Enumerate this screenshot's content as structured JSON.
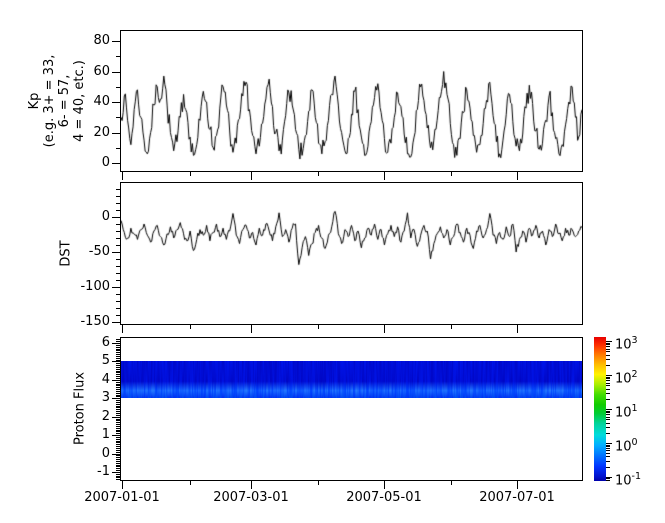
{
  "figure": {
    "background": "#ffffff",
    "frame_color": "#000000",
    "line_color": "#000000"
  },
  "panels": {
    "kp": {
      "ylabel": "Kp\n(e.g. 3+ = 33,\n6- = 57,\n4 = 40, etc.)",
      "yticks_major": [
        0,
        20,
        40,
        60,
        80
      ],
      "yticks_minor": [
        10,
        30,
        50,
        70
      ]
    },
    "dst": {
      "ylabel": "DST",
      "yticks_major": [
        0,
        -50,
        -100,
        -150
      ],
      "yticks_minor": [
        40,
        30,
        20,
        10,
        -10,
        -20,
        -30,
        -40,
        -60,
        -70,
        -80,
        -90,
        -110,
        -120,
        -130,
        -140
      ]
    },
    "flux": {
      "ylabel": "Proton Flux",
      "yticks_major": [
        6,
        5,
        4,
        3,
        2,
        1,
        0,
        -1
      ],
      "yticks_minor_step": 0.1
    }
  },
  "x_axis": {
    "tick_labels": [
      "2007-01-01",
      "2007-03-01",
      "2007-05-01",
      "2007-07-01"
    ],
    "tick_days": [
      0,
      59,
      120,
      181
    ],
    "minor_days": [
      31,
      90,
      151
    ],
    "range_days": [
      -1,
      211.5
    ],
    "unit": "days since 2007-01-01"
  },
  "chart_data": [
    {
      "type": "line",
      "name": "Kp",
      "ylabel": "Kp (e.g. 3+ = 33, 6- = 57, 4 = 40, etc.)",
      "ylim": [
        -5,
        87
      ],
      "yticks": [
        0,
        20,
        40,
        60,
        80
      ],
      "x_range": [
        "2007-01-01",
        "2007-07-31"
      ],
      "line_color": "#000000",
      "noise_seed": 7,
      "noise_amp": 7,
      "clamp": [
        0,
        62
      ],
      "values": [
        30,
        44,
        28,
        12,
        35,
        48,
        30,
        15,
        6,
        20,
        38,
        50,
        42,
        57,
        38,
        20,
        8,
        14,
        30,
        45,
        33,
        17,
        5,
        12,
        28,
        47,
        40,
        22,
        10,
        18,
        36,
        50,
        38,
        21,
        7,
        13,
        29,
        44,
        53,
        35,
        18,
        6,
        11,
        26,
        42,
        55,
        37,
        20,
        8,
        15,
        31,
        46,
        38,
        22,
        9,
        5,
        18,
        34,
        48,
        30,
        13,
        6,
        14,
        28,
        45,
        57,
        38,
        20,
        8,
        16,
        32,
        47,
        35,
        17,
        5,
        11,
        27,
        43,
        52,
        33,
        16,
        7,
        13,
        30,
        46,
        37,
        19,
        6,
        4,
        17,
        35,
        50,
        41,
        23,
        10,
        15,
        28,
        43,
        60,
        45,
        26,
        12,
        5,
        16,
        33,
        48,
        36,
        18,
        7,
        12,
        26,
        41,
        53,
        31,
        14,
        6,
        15,
        32,
        45,
        27,
        11,
        8,
        19,
        36,
        51,
        39,
        21,
        9,
        13,
        28,
        44,
        33,
        16,
        6,
        12,
        25,
        40,
        50,
        30,
        17,
        35
      ]
    },
    {
      "type": "line",
      "name": "DST",
      "ylabel": "DST",
      "ylim": [
        -153,
        49
      ],
      "yticks": [
        0,
        -50,
        -100,
        -150
      ],
      "x_range": [
        "2007-01-01",
        "2007-07-31"
      ],
      "line_color": "#000000",
      "noise_seed": 13,
      "noise_amp": 5,
      "clamp": [
        -75,
        15
      ],
      "values": [
        -5,
        -22,
        -30,
        -16,
        -24,
        -32,
        -18,
        -10,
        -26,
        -36,
        -20,
        -12,
        -28,
        -40,
        -24,
        -14,
        -30,
        -18,
        -8,
        -24,
        -34,
        -20,
        -48,
        -32,
        -18,
        -26,
        -12,
        -34,
        -22,
        -10,
        -28,
        -16,
        -32,
        -20,
        5,
        -26,
        -38,
        -18,
        -12,
        -30,
        -22,
        -40,
        -16,
        -26,
        -10,
        -20,
        -34,
        -14,
        6,
        -28,
        -18,
        -36,
        -16,
        -10,
        -68,
        -44,
        -28,
        -55,
        -38,
        -22,
        -12,
        -30,
        -45,
        -26,
        -14,
        8,
        -24,
        -38,
        -18,
        -28,
        -12,
        -34,
        -20,
        -44,
        -30,
        -16,
        -26,
        -10,
        -32,
        -18,
        -40,
        -24,
        -12,
        -28,
        -14,
        -36,
        -20,
        6,
        -30,
        -18,
        -42,
        -26,
        -12,
        -20,
        -60,
        -38,
        -24,
        -14,
        -30,
        -18,
        -40,
        -28,
        -10,
        -22,
        -36,
        -16,
        -26,
        -45,
        -20,
        -12,
        -30,
        -18,
        5,
        -26,
        -38,
        -22,
        -32,
        -14,
        -28,
        -10,
        -50,
        -32,
        -20,
        -36,
        -16,
        -26,
        -12,
        -30,
        -20,
        -40,
        -18,
        -28,
        -10,
        -24,
        -34,
        -16,
        -26,
        -18,
        -28,
        -20,
        -15
      ]
    },
    {
      "type": "heatmap",
      "name": "Proton Flux",
      "ylabel": "Proton Flux",
      "ylim": [
        -1.4,
        6.3
      ],
      "yticks": [
        -1,
        0,
        1,
        2,
        3,
        4,
        5,
        6
      ],
      "x_range": [
        "2007-01-01",
        "2007-07-31"
      ],
      "band": {
        "y_min": 3.0,
        "y_max": 5.0,
        "approx_log10_value": [
          -1.1,
          -0.6
        ],
        "upper_color": "#000fd0",
        "lower_color": "#0049ff"
      },
      "noise_seed": 99
    },
    {
      "type": "colorbar",
      "scale": "log10",
      "tick_exponents": [
        3,
        2,
        1,
        0,
        -1
      ],
      "range_log10": [
        -1.12,
        3.12
      ],
      "gradient_stops": [
        [
          0.0,
          "#e80000"
        ],
        [
          0.06,
          "#ff3300"
        ],
        [
          0.12,
          "#ff7700"
        ],
        [
          0.19,
          "#ffbb00"
        ],
        [
          0.26,
          "#fff200"
        ],
        [
          0.33,
          "#aaee00"
        ],
        [
          0.4,
          "#44dd00"
        ],
        [
          0.47,
          "#11cc00"
        ],
        [
          0.53,
          "#00cc33"
        ],
        [
          0.6,
          "#00d49a"
        ],
        [
          0.68,
          "#00dcdc"
        ],
        [
          0.75,
          "#00b0ff"
        ],
        [
          0.82,
          "#0077ff"
        ],
        [
          0.9,
          "#0033ff"
        ],
        [
          0.97,
          "#0011cc"
        ],
        [
          1.0,
          "#0000aa"
        ]
      ]
    }
  ]
}
